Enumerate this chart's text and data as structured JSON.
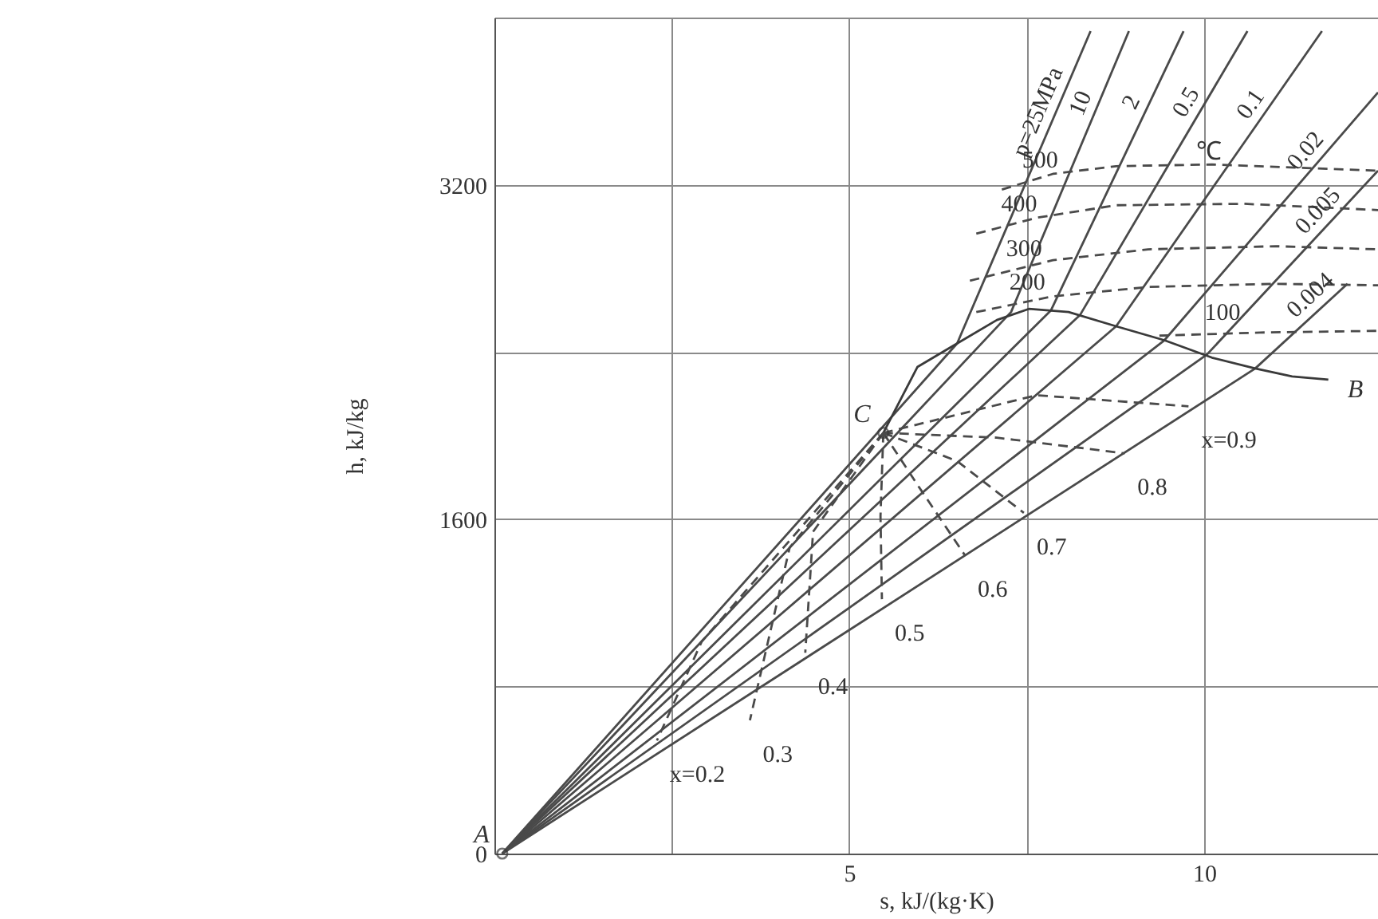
{
  "chart_data": {
    "type": "line",
    "xlabel": "s, kJ/(kg·K)",
    "ylabel": "h, kJ/kg",
    "xlim": [
      0,
      12.45
    ],
    "ylim": [
      0,
      4000
    ],
    "xticks": [
      {
        "value": 0,
        "label": null
      },
      {
        "value": 2.5,
        "label": null
      },
      5,
      {
        "value": 7.5,
        "label": null
      },
      10
    ],
    "yticks": [
      0,
      {
        "value": 800,
        "label": null
      },
      1600,
      {
        "value": 2400,
        "label": null
      },
      3200,
      {
        "value": 4000,
        "label": null
      }
    ],
    "grid": true,
    "series": [
      {
        "name": "p=25MPa",
        "color": "#4a4a4a",
        "line_style": "solid",
        "x": [
          0.11,
          6.52,
          8.4
        ],
        "values": [
          0,
          2441,
          3935
        ]
      },
      {
        "name": "10",
        "color": "#4a4a4a",
        "line_style": "solid",
        "x": [
          0.11,
          7.28,
          8.94
        ],
        "values": [
          0,
          2591,
          3935
        ]
      },
      {
        "name": "2",
        "color": "#4a4a4a",
        "line_style": "solid",
        "x": [
          0.11,
          7.84,
          9.71
        ],
        "values": [
          0,
          2598,
          3935
        ]
      },
      {
        "name": "0.5",
        "color": "#4a4a4a",
        "line_style": "solid",
        "x": [
          0.11,
          8.25,
          10.61
        ],
        "values": [
          0,
          2576,
          3935
        ]
      },
      {
        "name": "0.1",
        "color": "#4a4a4a",
        "line_style": "solid",
        "x": [
          0.11,
          8.76,
          11.66
        ],
        "values": [
          0,
          2523,
          3935
        ]
      },
      {
        "name": "0.02",
        "color": "#4a4a4a",
        "line_style": "solid",
        "x": [
          0.11,
          9.44,
          12.45
        ],
        "values": [
          0,
          2456,
          3642
        ]
      },
      {
        "name": "0.005",
        "color": "#4a4a4a",
        "line_style": "solid",
        "x": [
          0.11,
          10.04,
          12.45
        ],
        "values": [
          0,
          2388,
          3267
        ]
      },
      {
        "name": "0.004",
        "color": "#4a4a4a",
        "line_style": "solid",
        "x": [
          0.11,
          10.72,
          12.02
        ],
        "values": [
          0,
          2321,
          2726
        ]
      },
      {
        "color": "#3a3a3a",
        "line_style": "solid",
        "x": [
          5.48,
          5.96,
          6.52,
          7.08,
          7.53,
          8.09,
          8.76,
          9.44,
          10.11,
          10.72,
          11.24,
          11.75
        ],
        "values": [
          2013,
          2328,
          2441,
          2553,
          2606,
          2591,
          2523,
          2456,
          2373,
          2321,
          2283,
          2268
        ]
      },
      {
        "name": "500",
        "color": "#4a4a4a",
        "type": "line",
        "line_style": "dashed",
        "x": [
          7.15,
          7.87,
          8.76,
          10.11,
          12.45
        ],
        "values": [
          3177,
          3252,
          3289,
          3297,
          3267
        ]
      },
      {
        "name": "400",
        "color": "#4a4a4a",
        "type": "line",
        "line_style": "dashed",
        "x": [
          6.79,
          7.64,
          8.76,
          10.56,
          12.45
        ],
        "values": [
          2966,
          3042,
          3102,
          3109,
          3079
        ]
      },
      {
        "name": "300",
        "color": "#4a4a4a",
        "type": "line",
        "line_style": "dashed",
        "x": [
          6.7,
          7.87,
          9.21,
          11.01,
          12.45
        ],
        "values": [
          2741,
          2839,
          2891,
          2906,
          2891
        ]
      },
      {
        "name": "200",
        "color": "#4a4a4a",
        "type": "line",
        "line_style": "dashed",
        "x": [
          6.79,
          7.87,
          9.21,
          11.01,
          12.45
        ],
        "values": [
          2591,
          2666,
          2711,
          2726,
          2719
        ]
      },
      {
        "name": "100",
        "color": "#4a4a4a",
        "type": "line",
        "line_style": "dashed",
        "x": [
          9.37,
          10.79,
          12.45
        ],
        "values": [
          2478,
          2493,
          2501
        ]
      },
      {
        "name": "x=0.9",
        "color": "#4a4a4a",
        "type": "line",
        "line_style": "dashed",
        "x": [
          5.48,
          7.64,
          9.78
        ],
        "values": [
          2013,
          2193,
          2140
        ]
      },
      {
        "name": "0.8",
        "color": "#4a4a4a",
        "type": "line",
        "line_style": "dashed",
        "x": [
          5.48,
          7.08,
          8.88
        ],
        "values": [
          2013,
          1990,
          1915
        ]
      },
      {
        "name": "0.7",
        "color": "#4a4a4a",
        "type": "line",
        "line_style": "dashed",
        "x": [
          5.48,
          6.52,
          7.46
        ],
        "values": [
          2013,
          1878,
          1630
        ]
      },
      {
        "name": "0.6",
        "color": "#4a4a4a",
        "type": "line",
        "line_style": "dashed",
        "x": [
          5.48,
          5.96,
          6.63
        ],
        "values": [
          2013,
          1765,
          1427
        ]
      },
      {
        "name": "0.5",
        "color": "#4a4a4a",
        "type": "line",
        "line_style": "dashed",
        "x": [
          5.48,
          5.44,
          5.46
        ],
        "values": [
          2013,
          1615,
          1217
        ]
      },
      {
        "name": "0.4",
        "color": "#4a4a4a",
        "type": "line",
        "line_style": "dashed",
        "x": [
          5.48,
          4.49,
          4.38
        ],
        "values": [
          2013,
          1540,
          961
        ]
      },
      {
        "name": "0.3",
        "color": "#4a4a4a",
        "type": "line",
        "line_style": "dashed",
        "x": [
          5.48,
          4.16,
          3.6
        ],
        "values": [
          2013,
          1464,
          638
        ]
      },
      {
        "name": "x=0.2",
        "color": "#4a4a4a",
        "type": "line",
        "line_style": "dashed",
        "x": [
          5.48,
          2.92,
          2.29
        ],
        "values": [
          2013,
          1014,
          541
        ]
      },
      {
        "color": "#3a3a3a",
        "type": "scatter",
        "marker": "circle",
        "x": [
          0.11,
          5.48
        ],
        "values": [
          0,
          2013
        ]
      }
    ],
    "annotations": [
      {
        "text": "A",
        "x": 0.11,
        "y": 0
      },
      {
        "text": "C",
        "x": 5.48,
        "y": 2013
      },
      {
        "text": "B",
        "x": 11.75,
        "y": 2268
      },
      "℃"
    ]
  }
}
